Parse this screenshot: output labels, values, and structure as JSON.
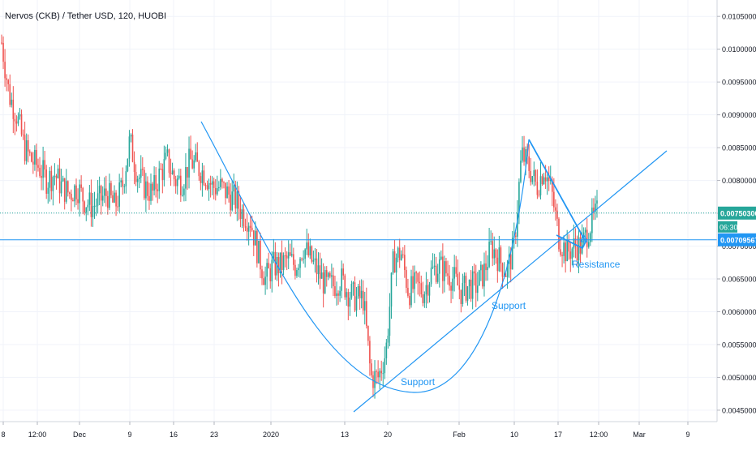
{
  "chart_data": {
    "type": "candlestick",
    "title": "Nervos (CKB) / Tether USD, 120, HUOBI",
    "symbol": "Nervos (CKB) / Tether USD",
    "interval": "120",
    "exchange": "HUOBI",
    "ylim": [
      0.0044,
      0.0107
    ],
    "y_ticks": [
      "0.00450000",
      "0.00500000",
      "0.00550000",
      "0.00600000",
      "0.00650000",
      "0.00700000",
      "0.00750000",
      "0.00800000",
      "0.00850000",
      "0.00900000",
      "0.00950000",
      "0.01000000",
      "0.01050000"
    ],
    "x_ticks": [
      "8",
      "12:00",
      "Dec",
      "9",
      "16",
      "23",
      "2020",
      "13",
      "20",
      "Feb",
      "10",
      "17",
      "12:00",
      "Mar",
      "9"
    ],
    "price_markers": [
      {
        "value": 0.007503,
        "label": "0.00750300",
        "color": "#26a69a",
        "style": "dotted"
      },
      {
        "value": 0.00709567,
        "label": "0.00709567",
        "color": "#2196f3",
        "style": "solid"
      }
    ],
    "countdown": "06:30",
    "up_color": "#26a69a",
    "down_color": "#ef5350",
    "grid": true,
    "annotations": [
      {
        "text": "Support",
        "color": "#2196f3"
      },
      {
        "text": "Support",
        "color": "#2196f3"
      },
      {
        "text": "Resistance",
        "color": "#2196f3"
      }
    ],
    "close_path": [
      [
        0.0101,
        0.0093,
        0.009,
        0.0085,
        0.0083,
        0.0082,
        0.008,
        0.0081,
        0.0079,
        0.0078,
        0.0079,
        0.0077,
        0.0076,
        0.0077,
        0.0078,
        0.0076,
        0.0079,
        0.0086,
        0.0081,
        0.0079,
        0.0078,
        0.0081,
        0.0083,
        0.008,
        0.008,
        0.0083,
        0.0082,
        0.0081,
        0.0079,
        0.0079,
        0.0078,
        0.0077,
        0.0075,
        0.0074,
        0.0069,
        0.0065,
        0.0067,
        0.0067,
        0.0068,
        0.0067,
        0.007,
        0.0068,
        0.0066,
        0.0064,
        0.0064,
        0.0065,
        0.0063,
        0.0062,
        0.0062,
        0.005,
        0.005,
        0.0054,
        0.0068,
        0.0069,
        0.0063,
        0.0064,
        0.0063,
        0.0066,
        0.0067,
        0.0066,
        0.0065,
        0.0063,
        0.0064,
        0.0064,
        0.0066,
        0.007,
        0.0068,
        0.0066,
        0.007,
        0.0084,
        0.0082,
        0.0079,
        0.0082,
        0.0078,
        0.0071,
        0.0069,
        0.007,
        0.007,
        0.0073,
        0.0075
      ]
    ]
  }
}
